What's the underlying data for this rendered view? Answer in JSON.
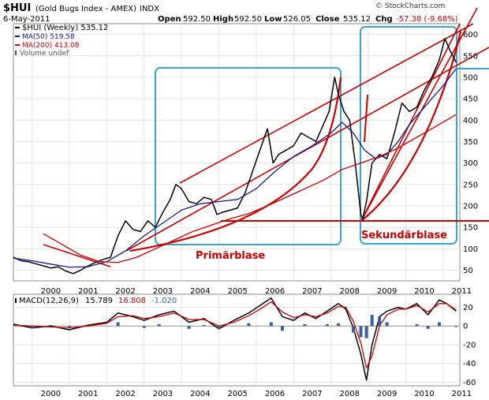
{
  "header": {
    "symbol": "$HUI",
    "name": "(Gold Bugs Index - AMEX)",
    "exchange": "INDX",
    "date": "6-May-2011",
    "open_label": "Open",
    "open": "592.50",
    "high_label": "High",
    "high": "592.50",
    "low_label": "Low",
    "low": "526.05",
    "close_label": "Close",
    "close": "535.12",
    "chg_label": "Chg",
    "chg": "-57.38 (-9.68%)",
    "watermark": "© StockCharts.com"
  },
  "legend": [
    {
      "label": "$HUI (Weekly) 535.12",
      "color": "#000000"
    },
    {
      "label": "MA(50) 519.58",
      "color": "#1a1a8c"
    },
    {
      "label": "MA(200) 413.08",
      "color": "#cc0000"
    },
    {
      "label": "Volume undef",
      "color": "#555555"
    }
  ],
  "annotations": {
    "primary": "Primärblase",
    "secondary": "Sekundärblase"
  },
  "macd_legend": {
    "label": "MACD(12,26,9)",
    "macd": "15.789",
    "signal": "16.808",
    "hist": "-1.020"
  },
  "chart_data": [
    {
      "type": "line",
      "title": "$HUI (Gold Bugs Index - AMEX) INDX",
      "xlabel": "",
      "ylabel": "",
      "x_ticks": [
        "2000",
        "2001",
        "2002",
        "2003",
        "2004",
        "2005",
        "2006",
        "2007",
        "2008",
        "2009",
        "2010",
        "2011"
      ],
      "y_ticks": [
        50,
        100,
        150,
        200,
        250,
        300,
        350,
        400,
        450,
        500,
        550,
        600
      ],
      "xlim": [
        1999.5,
        2011.45
      ],
      "ylim": [
        25,
        625
      ],
      "grid": true,
      "series": [
        {
          "name": "$HUI (Weekly)",
          "color": "#000000",
          "x": [
            1999.5,
            1999.7,
            1999.9,
            2000.1,
            2000.3,
            2000.5,
            2000.7,
            2000.9,
            2001.1,
            2001.3,
            2001.5,
            2001.7,
            2001.9,
            2002.1,
            2002.3,
            2002.5,
            2002.7,
            2002.9,
            2003.1,
            2003.3,
            2003.5,
            2003.7,
            2003.85,
            2004.0,
            2004.2,
            2004.4,
            2004.6,
            2004.8,
            2004.95,
            2005.1,
            2005.3,
            2005.5,
            2005.7,
            2005.9,
            2006.1,
            2006.3,
            2006.45,
            2006.6,
            2006.8,
            2007.0,
            2007.2,
            2007.4,
            2007.6,
            2007.8,
            2007.95,
            2008.1,
            2008.2,
            2008.35,
            2008.5,
            2008.65,
            2008.8,
            2008.85,
            2008.95,
            2009.1,
            2009.3,
            2009.5,
            2009.7,
            2009.9,
            2010.1,
            2010.3,
            2010.5,
            2010.7,
            2010.9,
            2011.05,
            2011.2,
            2011.35
          ],
          "values": [
            80,
            72,
            70,
            65,
            60,
            55,
            58,
            48,
            42,
            50,
            60,
            68,
            75,
            80,
            130,
            165,
            145,
            140,
            165,
            150,
            185,
            215,
            250,
            240,
            210,
            205,
            220,
            215,
            180,
            185,
            190,
            195,
            230,
            280,
            330,
            380,
            300,
            320,
            330,
            340,
            370,
            360,
            350,
            390,
            420,
            500,
            460,
            420,
            400,
            300,
            180,
            170,
            210,
            300,
            320,
            310,
            370,
            440,
            420,
            430,
            470,
            500,
            540,
            590,
            560,
            535
          ]
        },
        {
          "name": "MA(50)",
          "color": "#1a1a8c",
          "x": [
            1999.5,
            2000.0,
            2000.5,
            2001.0,
            2001.5,
            2002.0,
            2002.5,
            2003.0,
            2003.5,
            2004.0,
            2004.5,
            2005.0,
            2005.5,
            2006.0,
            2006.5,
            2007.0,
            2007.5,
            2008.0,
            2008.3,
            2008.6,
            2008.9,
            2009.2,
            2009.5,
            2009.8,
            2010.1,
            2010.4,
            2010.7,
            2011.0,
            2011.35
          ],
          "values": [
            78,
            72,
            64,
            57,
            58,
            70,
            95,
            130,
            160,
            190,
            205,
            210,
            215,
            240,
            280,
            315,
            340,
            370,
            395,
            370,
            330,
            310,
            320,
            350,
            390,
            420,
            450,
            480,
            520
          ]
        },
        {
          "name": "MA(200)",
          "color": "#cc0000",
          "x": [
            2000.3,
            2000.8,
            2001.3,
            2001.8,
            2002.3,
            2002.8,
            2003.3,
            2003.8,
            2004.3,
            2004.8,
            2005.3,
            2005.8,
            2006.3,
            2006.8,
            2007.3,
            2007.8,
            2008.3,
            2008.8,
            2009.3,
            2009.8,
            2010.3,
            2010.8,
            2011.35
          ],
          "values": [
            135,
            110,
            85,
            70,
            68,
            80,
            100,
            120,
            140,
            155,
            170,
            182,
            200,
            220,
            240,
            260,
            285,
            300,
            315,
            335,
            360,
            385,
            413
          ]
        }
      ]
    },
    {
      "type": "line",
      "title": "MACD(12,26,9)",
      "x_ticks": [
        "2000",
        "2001",
        "2002",
        "2003",
        "2004",
        "2005",
        "2006",
        "2007",
        "2008",
        "2009",
        "2010",
        "2011"
      ],
      "y_ticks": [
        20,
        0,
        -20,
        -40,
        -60
      ],
      "xlim": [
        1999.5,
        2011.45
      ],
      "ylim": [
        -64,
        34
      ],
      "series": [
        {
          "name": "MACD",
          "color": "#000000",
          "x": [
            1999.5,
            2000.0,
            2000.5,
            2001.0,
            2001.5,
            2002.0,
            2002.3,
            2002.7,
            2003.0,
            2003.4,
            2003.8,
            2004.2,
            2004.6,
            2005.0,
            2005.4,
            2005.8,
            2006.1,
            2006.4,
            2006.7,
            2007.0,
            2007.3,
            2007.6,
            2007.9,
            2008.2,
            2008.4,
            2008.6,
            2008.8,
            2008.95,
            2009.1,
            2009.3,
            2009.5,
            2009.8,
            2010.0,
            2010.3,
            2010.6,
            2010.9,
            2011.1,
            2011.35
          ],
          "values": [
            2,
            -2,
            0,
            -4,
            1,
            4,
            14,
            10,
            6,
            12,
            16,
            4,
            8,
            -3,
            6,
            14,
            22,
            30,
            10,
            6,
            14,
            8,
            16,
            24,
            18,
            -2,
            -30,
            -58,
            -20,
            10,
            16,
            20,
            18,
            24,
            12,
            28,
            24,
            16
          ]
        },
        {
          "name": "Signal",
          "color": "#cc0000",
          "x": [
            1999.5,
            2000.0,
            2000.5,
            2001.0,
            2001.5,
            2002.0,
            2002.3,
            2002.7,
            2003.0,
            2003.4,
            2003.8,
            2004.2,
            2004.6,
            2005.0,
            2005.4,
            2005.8,
            2006.1,
            2006.4,
            2006.7,
            2007.0,
            2007.3,
            2007.6,
            2007.9,
            2008.2,
            2008.4,
            2008.6,
            2008.8,
            2008.95,
            2009.1,
            2009.3,
            2009.5,
            2009.8,
            2010.0,
            2010.3,
            2010.6,
            2010.9,
            2011.1,
            2011.35
          ],
          "values": [
            1,
            0,
            -1,
            -2,
            0,
            3,
            10,
            11,
            8,
            10,
            14,
            7,
            7,
            0,
            4,
            11,
            18,
            26,
            15,
            9,
            12,
            10,
            14,
            21,
            20,
            5,
            -18,
            -45,
            -32,
            0,
            12,
            18,
            18,
            22,
            15,
            24,
            24,
            17
          ]
        },
        {
          "name": "Histogram",
          "color": "#3a5f9a",
          "x": [
            2000.0,
            2000.5,
            2001.0,
            2002.3,
            2003.0,
            2003.4,
            2004.2,
            2004.6,
            2005.0,
            2005.8,
            2006.4,
            2006.7,
            2007.3,
            2007.9,
            2008.2,
            2008.6,
            2008.8,
            2008.95,
            2009.1,
            2009.3,
            2009.5,
            2010.3,
            2010.6,
            2010.9,
            2011.35
          ],
          "values": [
            -2,
            1,
            -2,
            4,
            -2,
            2,
            -3,
            1,
            -3,
            3,
            4,
            -5,
            2,
            2,
            3,
            -7,
            -12,
            -13,
            12,
            10,
            4,
            2,
            -3,
            4,
            -1
          ]
        }
      ]
    }
  ]
}
